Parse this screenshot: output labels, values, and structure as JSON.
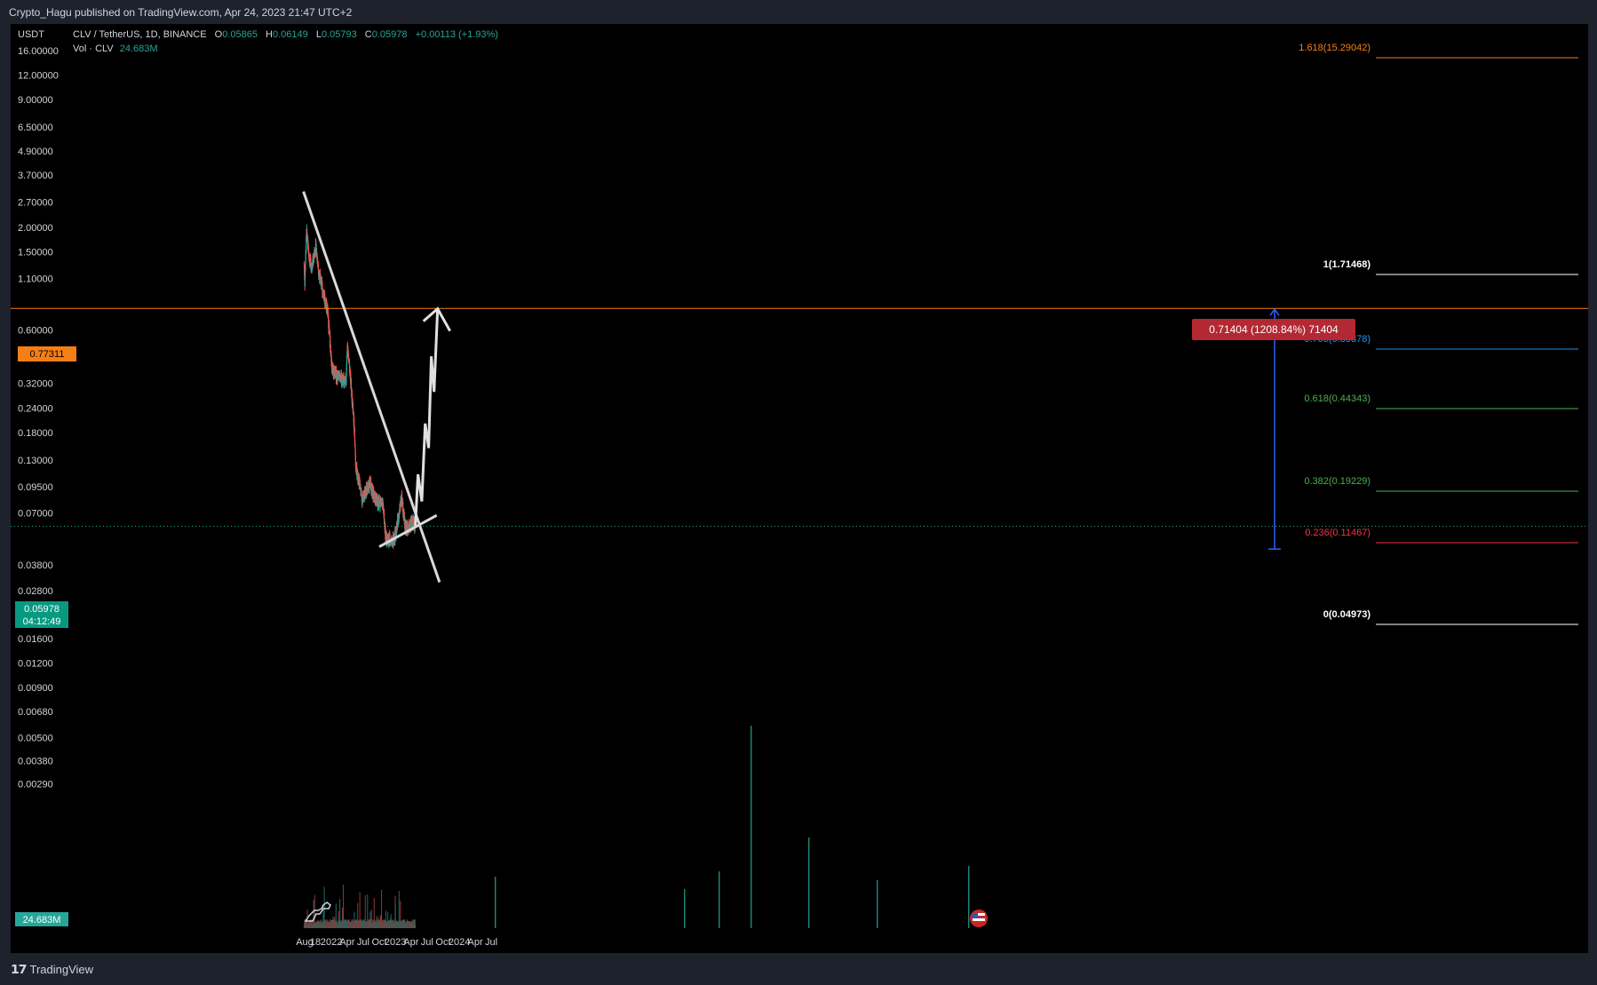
{
  "header": {
    "publisher": "Crypto_Hagu published on TradingView.com, Apr 24, 2023 21:47 UTC+2"
  },
  "legend": {
    "symbol": "CLV / TetherUS, 1D, BINANCE",
    "o_label": "O",
    "o_value": "0.05865",
    "h_label": "H",
    "h_value": "0.06149",
    "l_label": "L",
    "l_value": "0.05793",
    "c_label": "C",
    "c_value": "0.05978",
    "change": "+0.00113 (+1.93%)",
    "vol_label": "Vol · CLV",
    "vol_value": "24.683M"
  },
  "currency": "USDT",
  "price_badge": {
    "value": "0.05978",
    "countdown": "04:12:49"
  },
  "hline_badge": "0.77311",
  "vol_badge": "24.683M",
  "measure_label": "0.71404 (1208.84%) 71404",
  "footer": {
    "brand": "TradingView"
  },
  "colors": {
    "up": "#26a69a",
    "down": "#ef5350",
    "fib_1618": "#f57f17",
    "fib_0786": "#2196f3",
    "fib_0618": "#4caf50",
    "fib_0382": "#4caf50",
    "fib_0236": "#f23645",
    "hline": "#f57f17",
    "measure": "#2962ff",
    "badge_bg": "#b22833"
  },
  "chart_data": {
    "type": "candlestick",
    "symbol": "CLV / TetherUS",
    "interval": "1D",
    "exchange": "BINANCE",
    "y_scale": "log",
    "ylim": [
      0.0026,
      17
    ],
    "y_ticks": [
      "16.00000",
      "12.00000",
      "9.00000",
      "6.50000",
      "4.90000",
      "3.70000",
      "2.70000",
      "2.00000",
      "1.50000",
      "1.10000",
      "0.60000",
      "0.44000",
      "0.32000",
      "0.24000",
      "0.18000",
      "0.13000",
      "0.09500",
      "0.07000",
      "0.03800",
      "0.02800",
      "0.02100",
      "0.01600",
      "0.01200",
      "0.00900",
      "0.00680",
      "0.00500",
      "0.00380",
      "0.00290"
    ],
    "x_ticks": [
      "Aug",
      "18",
      "2022",
      "Apr",
      "Jul",
      "Oct",
      "2023",
      "Apr",
      "Jul",
      "Oct",
      "2024",
      "Apr",
      "Jul"
    ],
    "price_path": [
      [
        "2021-07-29",
        1.3
      ],
      [
        "2021-08-02",
        1.05
      ],
      [
        "2021-08-12",
        1.9
      ],
      [
        "2021-08-25",
        1.45
      ],
      [
        "2021-09-10",
        1.25
      ],
      [
        "2021-10-05",
        1.6
      ],
      [
        "2021-10-20",
        1.2
      ],
      [
        "2021-11-25",
        0.85
      ],
      [
        "2021-12-10",
        0.75
      ],
      [
        "2022-01-05",
        0.38
      ],
      [
        "2022-01-20",
        0.36
      ],
      [
        "2022-02-20",
        0.34
      ],
      [
        "2022-03-25",
        0.33
      ],
      [
        "2022-04-02",
        0.5
      ],
      [
        "2022-04-20",
        0.34
      ],
      [
        "2022-05-10",
        0.2
      ],
      [
        "2022-05-20",
        0.12
      ],
      [
        "2022-06-10",
        0.1
      ],
      [
        "2022-06-25",
        0.082
      ],
      [
        "2022-07-15",
        0.09
      ],
      [
        "2022-08-10",
        0.098
      ],
      [
        "2022-09-05",
        0.082
      ],
      [
        "2022-10-01",
        0.078
      ],
      [
        "2022-10-20",
        0.08
      ],
      [
        "2022-11-09",
        0.05
      ],
      [
        "2022-12-01",
        0.052
      ],
      [
        "2022-12-25",
        0.051
      ],
      [
        "2023-01-10",
        0.06
      ],
      [
        "2023-02-05",
        0.085
      ],
      [
        "2023-02-25",
        0.06
      ],
      [
        "2023-03-15",
        0.058
      ],
      [
        "2023-04-05",
        0.063
      ],
      [
        "2023-04-24",
        0.05978
      ]
    ],
    "fib_levels": [
      {
        "label": "1.618(15.29042)",
        "level": 1.618,
        "price": 15.29042
      },
      {
        "label": "1(1.71468)",
        "level": 1,
        "price": 1.71468
      },
      {
        "label": "0.786(0.80378)",
        "level": 0.786,
        "price": 0.80378
      },
      {
        "label": "0.618(0.44343)",
        "level": 0.618,
        "price": 0.44343
      },
      {
        "label": "0.382(0.19229)",
        "level": 0.382,
        "price": 0.19229
      },
      {
        "label": "0.236(0.11467)",
        "level": 0.236,
        "price": 0.11467
      },
      {
        "label": "0(0.04973)",
        "level": 0,
        "price": 0.04973
      }
    ],
    "drawings": {
      "descending_trendline": [
        [
          "2021-07-25",
          3.05
        ],
        [
          "2023-09-10",
          0.031
        ]
      ],
      "ascending_trendline": [
        [
          "2022-10-01",
          0.047
        ],
        [
          "2023-08-25",
          0.068
        ]
      ],
      "horizontal_line": 0.77311,
      "projection_path": [
        [
          "2023-04-25",
          0.06
        ],
        [
          "2023-05-10",
          0.11
        ],
        [
          "2023-06-01",
          0.08
        ],
        [
          "2023-06-20",
          0.2
        ],
        [
          "2023-07-10",
          0.15
        ],
        [
          "2023-07-25",
          0.44
        ],
        [
          "2023-08-10",
          0.29
        ],
        [
          "2023-08-30",
          0.77
        ]
      ]
    },
    "volume": {
      "last": "24.683M"
    }
  }
}
